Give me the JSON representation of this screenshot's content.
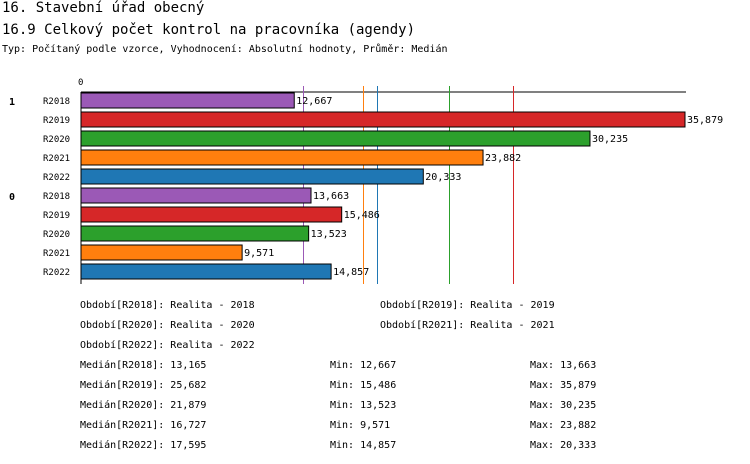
{
  "header": {
    "title": "16. Stavební úřad obecný",
    "subtitle": "16.9 Celkový počet kontrol na pracovníka (agendy)",
    "description": "Typ: Počítaný podle vzorce, Vyhodnocení: Absolutní hodnoty, Průměr: Medián"
  },
  "chart_data": {
    "type": "bar",
    "orientation": "horizontal",
    "axis_zero_label": "0",
    "xlim": [
      0,
      37500
    ],
    "groups": [
      {
        "label": "1",
        "bars": [
          {
            "category": "R2018",
            "value": 12667,
            "label": "12,667",
            "color": "#9b59b6"
          },
          {
            "category": "R2019",
            "value": 35879,
            "label": "35,879",
            "color": "#d62728"
          },
          {
            "category": "R2020",
            "value": 30235,
            "label": "30,235",
            "color": "#2ca02c"
          },
          {
            "category": "R2021",
            "value": 23882,
            "label": "23,882",
            "color": "#ff7f0e"
          },
          {
            "category": "R2022",
            "value": 20333,
            "label": "20,333",
            "color": "#1f77b4"
          }
        ]
      },
      {
        "label": "0",
        "bars": [
          {
            "category": "R2018",
            "value": 13663,
            "label": "13,663",
            "color": "#9b59b6"
          },
          {
            "category": "R2019",
            "value": 15486,
            "label": "15,486",
            "color": "#d62728"
          },
          {
            "category": "R2020",
            "value": 13523,
            "label": "13,523",
            "color": "#2ca02c"
          },
          {
            "category": "R2021",
            "value": 9571,
            "label": "9,571",
            "color": "#ff7f0e"
          },
          {
            "category": "R2022",
            "value": 14857,
            "label": "14,857",
            "color": "#1f77b4"
          }
        ]
      }
    ],
    "median_lines": [
      {
        "series": "R2018",
        "value": 13165,
        "color": "#9b59b6"
      },
      {
        "series": "R2019",
        "value": 25682,
        "color": "#d62728"
      },
      {
        "series": "R2020",
        "value": 21879,
        "color": "#2ca02c"
      },
      {
        "series": "R2021",
        "value": 16727,
        "color": "#ff7f0e"
      },
      {
        "series": "R2022",
        "value": 17595,
        "color": "#1f77b4"
      }
    ]
  },
  "legend": {
    "periods": [
      "Období[R2018]: Realita - 2018",
      "Období[R2019]: Realita - 2019",
      "Období[R2020]: Realita - 2020",
      "Období[R2021]: Realita - 2021",
      "Období[R2022]: Realita - 2022"
    ],
    "stats": [
      {
        "median": "Medián[R2018]: 13,165",
        "min": "Min: 12,667",
        "max": "Max: 13,663"
      },
      {
        "median": "Medián[R2019]: 25,682",
        "min": "Min: 15,486",
        "max": "Max: 35,879"
      },
      {
        "median": "Medián[R2020]: 21,879",
        "min": "Min: 13,523",
        "max": "Max: 30,235"
      },
      {
        "median": "Medián[R2021]: 16,727",
        "min": "Min: 9,571",
        "max": "Max: 23,882"
      },
      {
        "median": "Medián[R2022]: 17,595",
        "min": "Min: 14,857",
        "max": "Max: 20,333"
      }
    ]
  }
}
